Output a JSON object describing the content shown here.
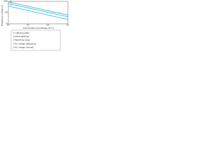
{
  "chart_data": {
    "type": "line",
    "y_label": "Breakdown voltage (V)",
    "x_label": "Concentration at substrate (cm⁻³)",
    "x": [
      100000000000000,
      100000000000000000
    ],
    "series": [
      {
        "name": "1",
        "color": "#29b6d8",
        "values": [
          900,
          60
        ]
      },
      {
        "name": "2",
        "color": "#29b6d8",
        "values": [
          650,
          42
        ]
      },
      {
        "name": "3",
        "color": "#29b6d8",
        "values": [
          380,
          24
        ]
      }
    ],
    "xlim": [
      100000000000000,
      100000000000000000
    ],
    "xticks": [
      {
        "value": 100000000000000,
        "label": "10¹⁴"
      },
      {
        "value": 1000000000000000,
        "label": "10¹⁵"
      },
      {
        "value": 10000000000000000,
        "label": "10¹⁶"
      },
      {
        "value": 100000000000000000,
        "label": "10¹⁷"
      }
    ],
    "ylim": [
      10,
      1000
    ],
    "yticks": [
      10,
      100,
      1000
    ],
    "log_x": true,
    "log_y": true,
    "grid": true,
    "annotations": [
      "1  Lightning strike",
      "2  Direct lightning",
      "3  Switching surge",
      "4  AC voltage (withstand)",
      "5  AC voltage (normal)"
    ]
  }
}
